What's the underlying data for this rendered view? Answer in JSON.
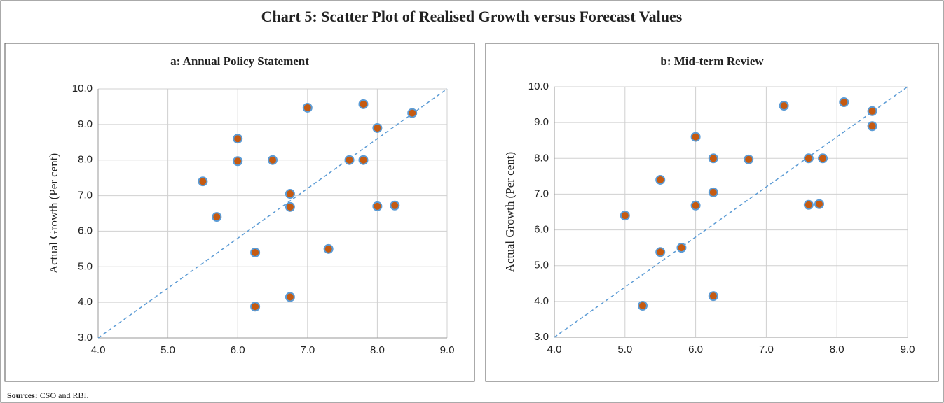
{
  "title": "Chart 5: Scatter Plot of Realised Growth versus Forecast Values",
  "sources": {
    "label": "Sources:",
    "text": "CSO and RBI."
  },
  "chart_data": [
    {
      "type": "scatter",
      "title": "a: Annual Policy Statement",
      "ylabel": "Actual Growth (Per cent)",
      "color": "#c55a11",
      "edgecolor": "#5b9bd5",
      "grid": true,
      "x": [
        5.5,
        5.7,
        6.0,
        6.0,
        6.25,
        6.25,
        6.5,
        6.75,
        6.75,
        6.75,
        7.0,
        7.3,
        7.6,
        7.8,
        7.8,
        8.0,
        8.0,
        8.25,
        8.5
      ],
      "values": [
        7.4,
        6.4,
        8.6,
        7.97,
        5.4,
        3.88,
        8.0,
        7.05,
        6.68,
        4.15,
        9.47,
        5.5,
        8.0,
        9.57,
        8.0,
        8.9,
        6.7,
        6.72,
        9.32
      ],
      "xlim": [
        4,
        9
      ],
      "ylim": [
        3,
        10
      ],
      "xticks": [
        {
          "value": 4,
          "label": "4.0"
        },
        {
          "value": 5,
          "label": "5.0"
        },
        {
          "value": 6,
          "label": "6.0"
        },
        {
          "value": 7,
          "label": "7.0"
        },
        {
          "value": 8,
          "label": "8.0"
        },
        {
          "value": 9,
          "label": "9.0"
        }
      ],
      "yticks": [
        {
          "value": 3,
          "label": "3.0"
        },
        {
          "value": 4,
          "label": "4.0"
        },
        {
          "value": 5,
          "label": "5.0"
        },
        {
          "value": 6,
          "label": "6.0"
        },
        {
          "value": 7,
          "label": "7.0"
        },
        {
          "value": 8,
          "label": "8.0"
        },
        {
          "value": 9,
          "label": "9.0"
        },
        {
          "value": 10,
          "label": "10.0"
        }
      ]
    },
    {
      "type": "scatter",
      "title": "b: Mid-term Review",
      "ylabel": "Actual Growth (Per cent)",
      "color": "#c55a11",
      "edgecolor": "#5b9bd5",
      "grid": true,
      "x": [
        5.0,
        5.25,
        5.5,
        5.5,
        5.8,
        6.0,
        6.0,
        6.25,
        6.25,
        6.25,
        6.75,
        7.25,
        7.6,
        7.6,
        7.75,
        7.8,
        8.1,
        8.5,
        8.5
      ],
      "values": [
        6.4,
        3.88,
        7.4,
        5.38,
        5.5,
        8.6,
        6.68,
        8.0,
        7.05,
        4.15,
        7.97,
        9.47,
        8.0,
        6.7,
        6.72,
        8.0,
        9.57,
        9.32,
        8.9
      ],
      "xlim": [
        4,
        9
      ],
      "ylim": [
        3,
        10
      ],
      "xticks": [
        {
          "value": 4,
          "label": "4.0"
        },
        {
          "value": 5,
          "label": "5.0"
        },
        {
          "value": 6,
          "label": "6.0"
        },
        {
          "value": 7,
          "label": "7.0"
        },
        {
          "value": 8,
          "label": "8.0"
        },
        {
          "value": 9,
          "label": "9.0"
        }
      ],
      "yticks": [
        {
          "value": 3,
          "label": "3.0"
        },
        {
          "value": 4,
          "label": "4.0"
        },
        {
          "value": 5,
          "label": "5.0"
        },
        {
          "value": 6,
          "label": "6.0"
        },
        {
          "value": 7,
          "label": "7.0"
        },
        {
          "value": 8,
          "label": "8.0"
        },
        {
          "value": 9,
          "label": "9.0"
        },
        {
          "value": 10,
          "label": "10.0"
        }
      ]
    }
  ]
}
